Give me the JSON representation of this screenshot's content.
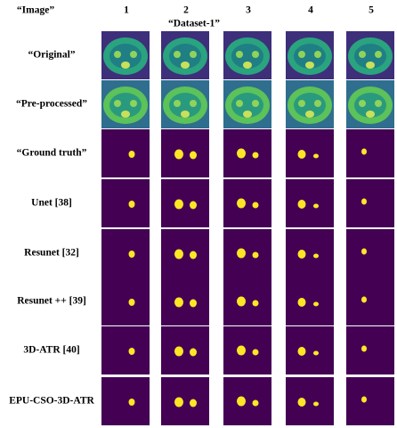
{
  "header": {
    "corner": "“Image”",
    "columns": [
      "1",
      "2",
      "3",
      "4",
      "5"
    ],
    "dataset": "“Dataset-1”"
  },
  "rows": [
    "“Original”",
    "“Pre-processed”",
    "“Ground truth”",
    "Unet [38]",
    "Resunet [32]",
    "Resunet ++ [39]",
    "3D-ATR [40]",
    "EPU-CSO-3D-ATR"
  ]
}
